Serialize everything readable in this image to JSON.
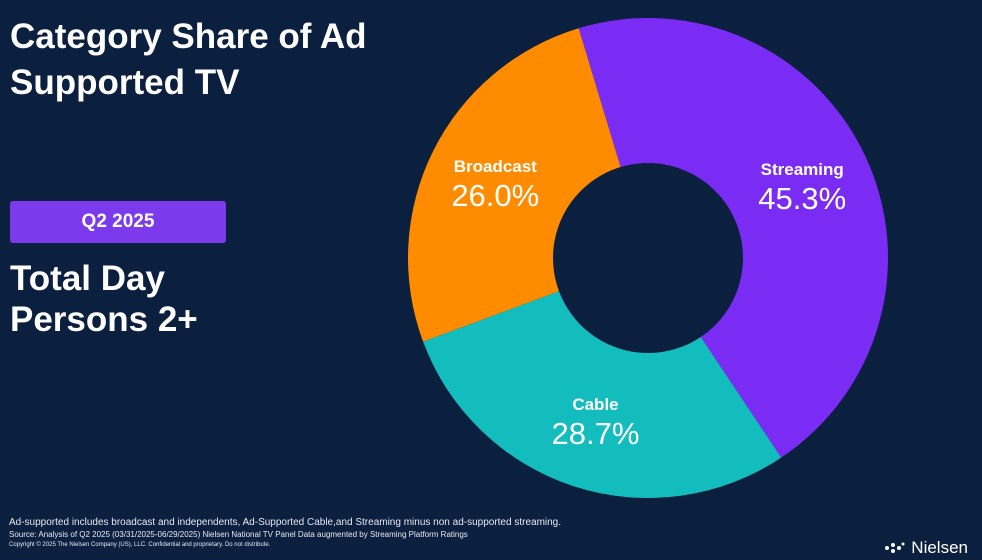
{
  "header": {
    "title_line1": "Category Share of Ad",
    "title_line2": "Supported TV"
  },
  "period_badge": {
    "label": "Q2 2025",
    "color": "#7c3aed"
  },
  "subtitle": {
    "line1": "Total Day",
    "line2": "Persons 2+"
  },
  "chart_data": {
    "type": "pie",
    "variant": "donut",
    "categories": [
      "Streaming",
      "Cable",
      "Broadcast"
    ],
    "values": [
      45.3,
      28.7,
      26.0
    ],
    "value_labels": [
      "45.3%",
      "28.7%",
      "26.0%"
    ],
    "colors": [
      "#7a2cf5",
      "#14bdbd",
      "#ff8c00"
    ],
    "legend": "none"
  },
  "footnotes": {
    "line1": "Ad-supported includes broadcast and independents, Ad-Supported Cable,and Streaming minus non ad-supported streaming.",
    "line2": "Source: Analysis of Q2 2025 (03/31/2025-06/29/2025)  Nielsen National TV Panel Data augmented by Streaming Platform Ratings",
    "line3": "Copyright © 2025 The Nielsen Company (US), LLC. Confidential and proprietary. Do not distribute."
  },
  "logo": {
    "text": "Nielsen",
    "icon": "nielsen-dots-icon"
  }
}
